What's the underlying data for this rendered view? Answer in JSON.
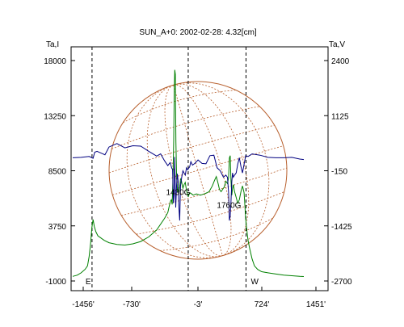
{
  "chart_data": {
    "type": "line",
    "title": "SUN_A+0: 2002-02-28: 4.32[cm]",
    "left_axis_label": "Ta,I",
    "right_axis_label": "Ta,V",
    "left_ticks": [
      "18000",
      "13250",
      "8500",
      "3750",
      "-1000"
    ],
    "right_ticks": [
      "2400",
      "1125",
      "-150",
      "-1425",
      "-2700"
    ],
    "x_ticks": [
      "-1456'",
      "-730'",
      "-3'",
      "724'",
      "1451'"
    ],
    "xlim": [
      -1456,
      1451
    ],
    "ylim_left": [
      -1000,
      18000
    ],
    "ylim_right": [
      -2700,
      2400
    ],
    "markers": [
      {
        "x": -1213,
        "label": "E"
      },
      {
        "x": -3,
        "label": ""
      },
      {
        "x": 724,
        "label": "W"
      }
    ],
    "annotations": [
      {
        "x": -130,
        "y": 6400,
        "text": "1430G"
      },
      {
        "x": 510,
        "y": 5300,
        "text": "1760G"
      }
    ],
    "colors": {
      "intensity": "#008000",
      "polarization": "#000080",
      "disk": "#b8602e",
      "axis": "#000000"
    },
    "series": [
      {
        "key": "intensity",
        "axis": "left",
        "x": [
          -1456,
          -1400,
          -1350,
          -1300,
          -1270,
          -1250,
          -1230,
          -1215,
          -1200,
          -1185,
          -1165,
          -1140,
          -1100,
          -1060,
          -1000,
          -900,
          -800,
          -700,
          -600,
          -500,
          -400,
          -300,
          -260,
          -240,
          -225,
          -215,
          -205,
          -195,
          -185,
          -178,
          -172,
          -165,
          -158,
          -150,
          -145,
          -138,
          -130,
          -120,
          -110,
          -100,
          -90,
          -80,
          -70,
          -55,
          -40,
          -25,
          -10,
          0,
          10,
          20,
          40,
          60,
          100,
          150,
          200,
          260,
          300,
          330,
          350,
          370,
          390,
          410,
          430,
          450,
          470,
          490,
          505,
          515,
          525,
          535,
          545,
          555,
          565,
          580,
          600,
          620,
          640,
          660,
          680,
          700,
          710,
          720,
          735,
          750,
          770,
          800,
          830,
          870,
          920,
          1000,
          1100,
          1200,
          1300,
          1400,
          1451
        ],
        "y": [
          -600,
          -500,
          -300,
          0,
          300,
          1100,
          2300,
          3600,
          4300,
          3700,
          3250,
          2900,
          2700,
          2500,
          2300,
          2150,
          2100,
          2200,
          2400,
          2800,
          3400,
          4400,
          4900,
          5500,
          5900,
          6000,
          5600,
          8000,
          11200,
          15500,
          17200,
          16800,
          11000,
          8200,
          7500,
          6700,
          6600,
          6700,
          7100,
          7800,
          7700,
          7300,
          7000,
          7300,
          7500,
          6800,
          6400,
          6300,
          6500,
          6600,
          6500,
          6400,
          6500,
          6400,
          6500,
          6700,
          7200,
          7700,
          8000,
          7500,
          6900,
          6700,
          6900,
          7100,
          7600,
          7400,
          7900,
          9600,
          9800,
          7600,
          6400,
          7000,
          7300,
          6700,
          6200,
          5700,
          6000,
          6700,
          7200,
          6600,
          5500,
          4300,
          3300,
          2500,
          1800,
          900,
          300,
          0,
          -200,
          -300,
          -400,
          -500,
          -550,
          -600,
          -620
        ]
      },
      {
        "key": "polarization",
        "axis": "right",
        "x": [
          -1456,
          -1350,
          -1250,
          -1200,
          -1180,
          -1150,
          -1100,
          -1050,
          -1000,
          -900,
          -800,
          -700,
          -600,
          -500,
          -400,
          -350,
          -300,
          -260,
          -230,
          -210,
          -200,
          -190,
          -180,
          -175,
          -168,
          -160,
          -150,
          -140,
          -130,
          -120,
          -110,
          -100,
          -85,
          -70,
          -55,
          -40,
          -25,
          -10,
          0,
          15,
          30,
          50,
          80,
          120,
          170,
          220,
          270,
          320,
          360,
          400,
          440,
          470,
          490,
          505,
          515,
          525,
          535,
          545,
          555,
          565,
          580,
          600,
          620,
          640,
          660,
          680,
          700,
          720,
          750,
          800,
          900,
          1000,
          1100,
          1200,
          1300,
          1400,
          1451
        ],
        "y": [
          150,
          160,
          180,
          140,
          280,
          300,
          260,
          220,
          400,
          480,
          380,
          430,
          420,
          300,
          190,
          240,
          80,
          -30,
          40,
          -90,
          -120,
          -900,
          -700,
          170,
          -300,
          -1000,
          -500,
          -220,
          -400,
          -1000,
          -1300,
          -500,
          -300,
          -150,
          -200,
          -250,
          -80,
          -130,
          -100,
          -60,
          60,
          -20,
          20,
          100,
          20,
          10,
          200,
          210,
          -80,
          -150,
          -300,
          -250,
          -300,
          -650,
          -1300,
          -1200,
          -850,
          -400,
          -200,
          -300,
          -250,
          -200,
          0,
          150,
          -50,
          -200,
          0,
          200,
          180,
          240,
          210,
          160,
          150,
          150,
          160,
          120,
          110
        ]
      }
    ]
  }
}
